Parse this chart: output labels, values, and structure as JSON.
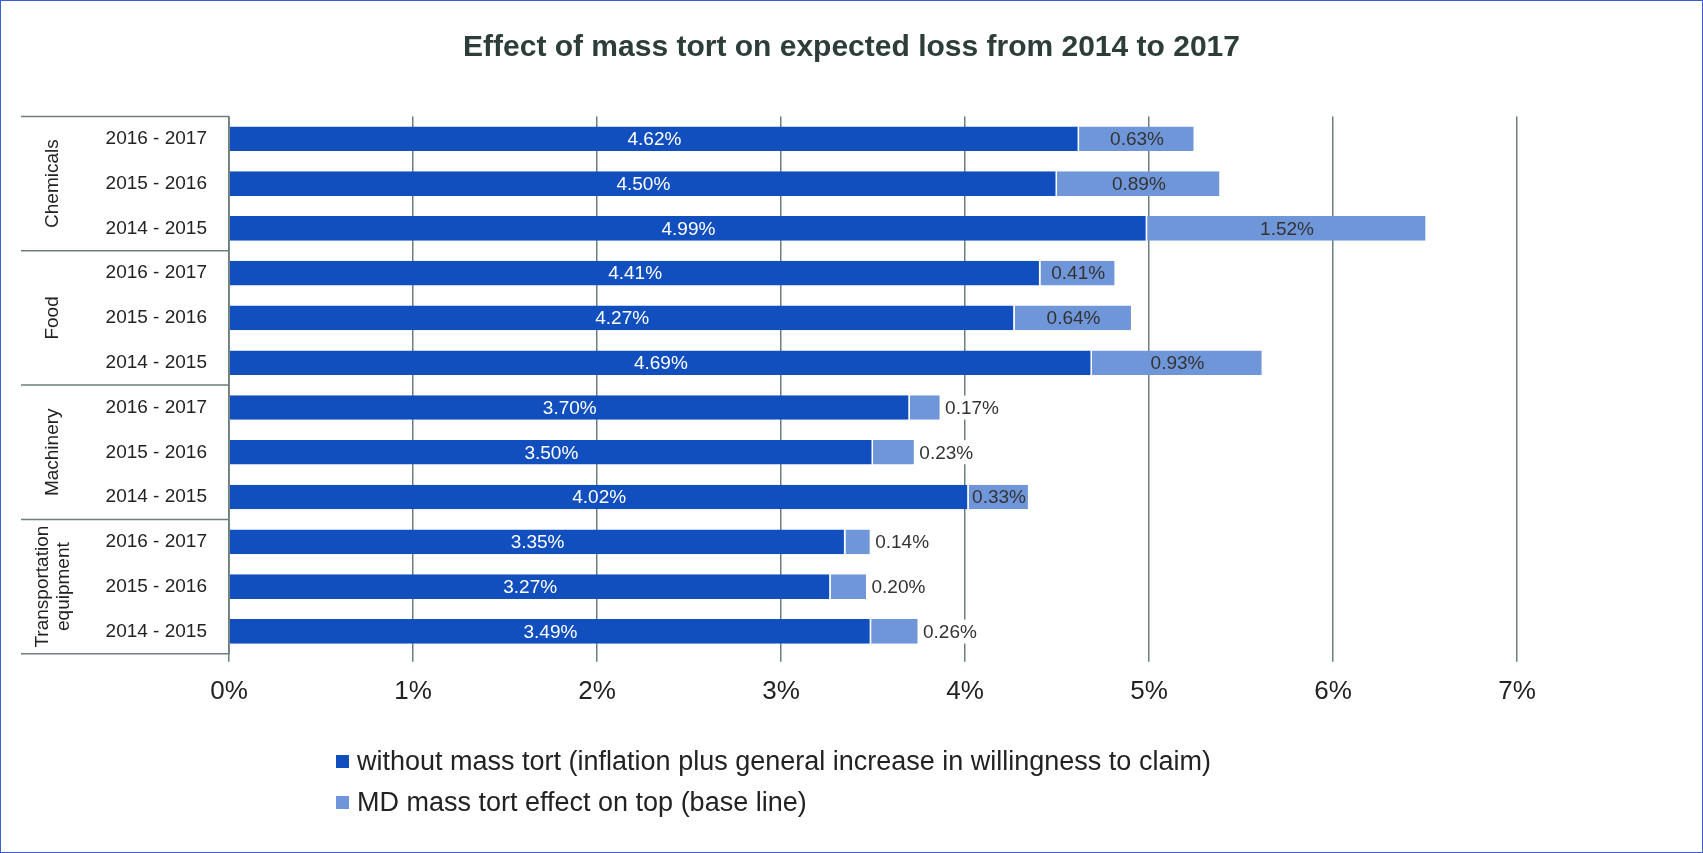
{
  "chart_data": {
    "type": "bar",
    "orientation": "horizontal",
    "stacked": true,
    "title": "Effect of mass tort on expected loss from 2014 to 2017",
    "categories": [
      "2016 - 2017",
      "2015 - 2016",
      "2014 - 2015",
      "2016 - 2017",
      "2015 - 2016",
      "2014 - 2015",
      "2016 - 2017",
      "2015 - 2016",
      "2014 - 2015",
      "2016 - 2017",
      "2015 - 2016",
      "2014 - 2015"
    ],
    "annotations": [
      "Chemicals",
      "Food",
      "Machinery",
      "Transportation equipment"
    ],
    "series": [
      {
        "name": "without mass tort (inflation plus general increase in willingness to claim)",
        "color": "#114fbf",
        "values": [
          4.62,
          4.5,
          4.99,
          4.41,
          4.27,
          4.69,
          3.7,
          3.5,
          4.02,
          3.35,
          3.27,
          3.49
        ],
        "value_labels": [
          "4.62%",
          "4.50%",
          "4.99%",
          "4.41%",
          "4.27%",
          "4.69%",
          "3.70%",
          "3.50%",
          "4.02%",
          "3.35%",
          "3.27%",
          "3.49%"
        ]
      },
      {
        "name": "MD mass tort effect on top (base line)",
        "color": "#6f96d9",
        "values": [
          0.63,
          0.89,
          1.52,
          0.41,
          0.64,
          0.93,
          0.17,
          0.23,
          0.33,
          0.14,
          0.2,
          0.26
        ],
        "value_labels": [
          "0.63%",
          "0.89%",
          "1.52%",
          "0.41%",
          "0.64%",
          "0.93%",
          "0.17%",
          "0.23%",
          "0.33%",
          "0.14%",
          "0.20%",
          "0.26%"
        ]
      }
    ],
    "xlim": [
      0,
      7
    ],
    "xticks": [
      {
        "value": 0,
        "label": "0%"
      },
      {
        "value": 1,
        "label": "1%"
      },
      {
        "value": 2,
        "label": "2%"
      },
      {
        "value": 3,
        "label": "3%"
      },
      {
        "value": 4,
        "label": "4%"
      },
      {
        "value": 5,
        "label": "5%"
      },
      {
        "value": 6,
        "label": "6%"
      },
      {
        "value": 7,
        "label": "7%"
      }
    ],
    "grid": "x",
    "legend": "bottom"
  }
}
